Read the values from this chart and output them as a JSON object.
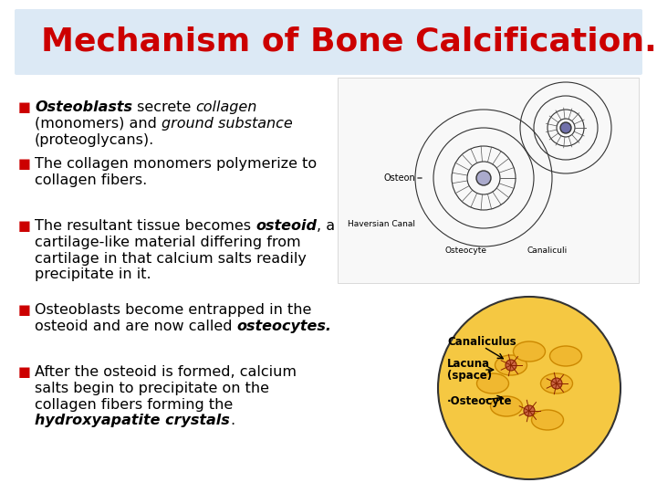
{
  "title": "Mechanism of Bone Calcification.",
  "title_color": "#cc0000",
  "title_bg_color": "#dce9f5",
  "background_color": "#ffffff",
  "bullet_color": "#cc0000",
  "text_color": "#000000",
  "bullets": [
    {
      "segments": [
        {
          "text": "Osteoblasts",
          "bold": true,
          "italic": true
        },
        {
          "text": " secrete ",
          "bold": false,
          "italic": false
        },
        {
          "text": "collagen",
          "bold": false,
          "italic": true
        },
        {
          "text": "\n(monomers) and ",
          "bold": false,
          "italic": false
        },
        {
          "text": "ground substance",
          "bold": false,
          "italic": true
        },
        {
          "text": "\n(proteoglycans).",
          "bold": false,
          "italic": false
        }
      ]
    },
    {
      "segments": [
        {
          "text": "The collagen monomers polymerize to\ncollagen fibers.",
          "bold": false,
          "italic": false
        }
      ]
    },
    {
      "segments": [
        {
          "text": "The resultant tissue becomes ",
          "bold": false,
          "italic": false
        },
        {
          "text": "osteoid",
          "bold": true,
          "italic": true
        },
        {
          "text": ", a\ncartilage-like material differing from\ncartilage in that calcium salts readily\nprecipitate in it.",
          "bold": false,
          "italic": false
        }
      ]
    },
    {
      "segments": [
        {
          "text": "Osteoblasts become entrapped in the\nosteoid and are now called ",
          "bold": false,
          "italic": false
        },
        {
          "text": "osteocytes.",
          "bold": true,
          "italic": true
        }
      ]
    },
    {
      "segments": [
        {
          "text": "After the osteoid is formed, calcium\nsalts begin to precipitate on the\ncollagen fibers forming the\n",
          "bold": false,
          "italic": false
        },
        {
          "text": "hydroxyapatite crystals",
          "bold": true,
          "italic": true
        },
        {
          "text": ".",
          "bold": false,
          "italic": false
        }
      ]
    }
  ],
  "title_fontsize": 26,
  "body_fontsize": 11.5,
  "bullet_marker": "§ ",
  "figsize": [
    7.2,
    5.4
  ],
  "dpi": 100
}
